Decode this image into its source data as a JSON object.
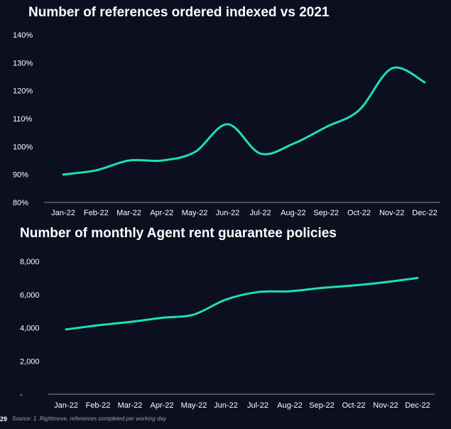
{
  "chart_data": [
    {
      "type": "line",
      "title": "Number of references ordered indexed vs 2021",
      "xlabel": "",
      "ylabel": "",
      "categories": [
        "Jan-22",
        "Feb-22",
        "Mar-22",
        "Apr-22",
        "May-22",
        "Jun-22",
        "Jul-22",
        "Aug-22",
        "Sep-22",
        "Oct-22",
        "Nov-22",
        "Dec-22"
      ],
      "values": [
        90,
        91.5,
        95,
        95,
        98,
        108,
        97.5,
        101,
        107,
        113,
        128,
        123
      ],
      "ylim": [
        80,
        140
      ],
      "yticks": [
        80,
        90,
        100,
        110,
        120,
        130,
        140
      ],
      "ytick_labels": [
        "80%",
        "90%",
        "100%",
        "110%",
        "120%",
        "130%",
        "140%"
      ],
      "grid": false,
      "line_color": "#1de0b4"
    },
    {
      "type": "line",
      "title": "Number of monthly Agent rent guarantee policies",
      "xlabel": "",
      "ylabel": "",
      "categories": [
        "Jan-22",
        "Feb-22",
        "Mar-22",
        "Apr-22",
        "May-22",
        "Jun-22",
        "Jul-22",
        "Aug-22",
        "Sep-22",
        "Oct-22",
        "Nov-22",
        "Dec-22"
      ],
      "values": [
        3900,
        4150,
        4350,
        4600,
        4800,
        5700,
        6150,
        6200,
        6400,
        6550,
        6750,
        7000
      ],
      "ylim": [
        0,
        8000
      ],
      "yticks": [
        0,
        2000,
        4000,
        6000,
        8000
      ],
      "ytick_labels": [
        "-",
        "2,000",
        "4,000",
        "6,000",
        "8,000"
      ],
      "grid": false,
      "line_color": "#1de0b4"
    }
  ],
  "footer": {
    "page_number": "29",
    "source": "Source: 1. Rightmove, references completed per working day"
  }
}
